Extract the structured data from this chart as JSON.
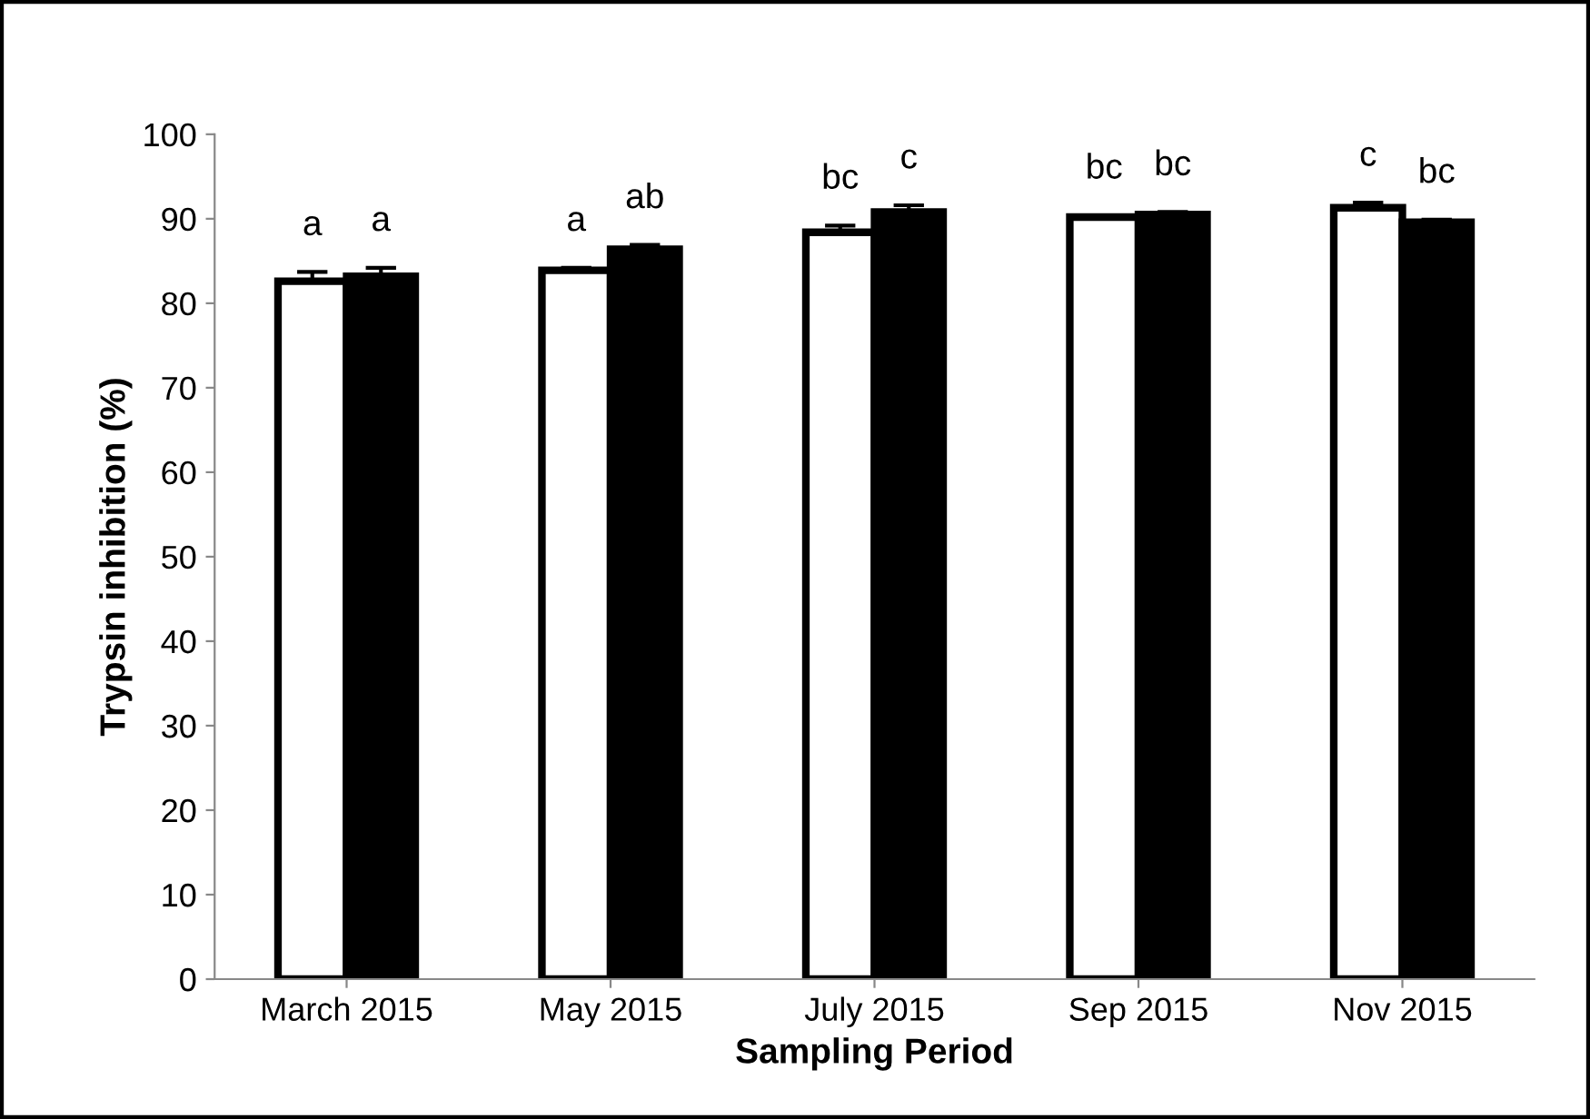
{
  "chart_data": {
    "type": "bar",
    "xlabel": "Sampling Period",
    "ylabel": "Trypsin inhibition (%)",
    "categories": [
      "March 2015",
      "May 2015",
      "July 2015",
      "Sep 2015",
      "Nov 2015"
    ],
    "series": [
      {
        "color": "#ffffff",
        "values": [
          82.6,
          83.9,
          88.4,
          90.2,
          91.3
        ],
        "errors": [
          1.1,
          0.3,
          0.8,
          0.2,
          0.6
        ],
        "value_labels": [
          "a",
          "a",
          "bc",
          "bc",
          "c"
        ]
      },
      {
        "color": "#000000",
        "values": [
          83.2,
          86.4,
          90.8,
          90.5,
          89.6
        ],
        "errors": [
          1.0,
          0.5,
          0.8,
          0.3,
          0.3
        ],
        "value_labels": [
          "a",
          "ab",
          "c",
          "bc",
          "bc"
        ]
      }
    ],
    "ylim": [
      0,
      100
    ],
    "yticks": [
      0,
      10,
      20,
      30,
      40,
      50,
      60,
      70,
      80,
      90,
      100
    ],
    "grid": false,
    "legend": false
  }
}
